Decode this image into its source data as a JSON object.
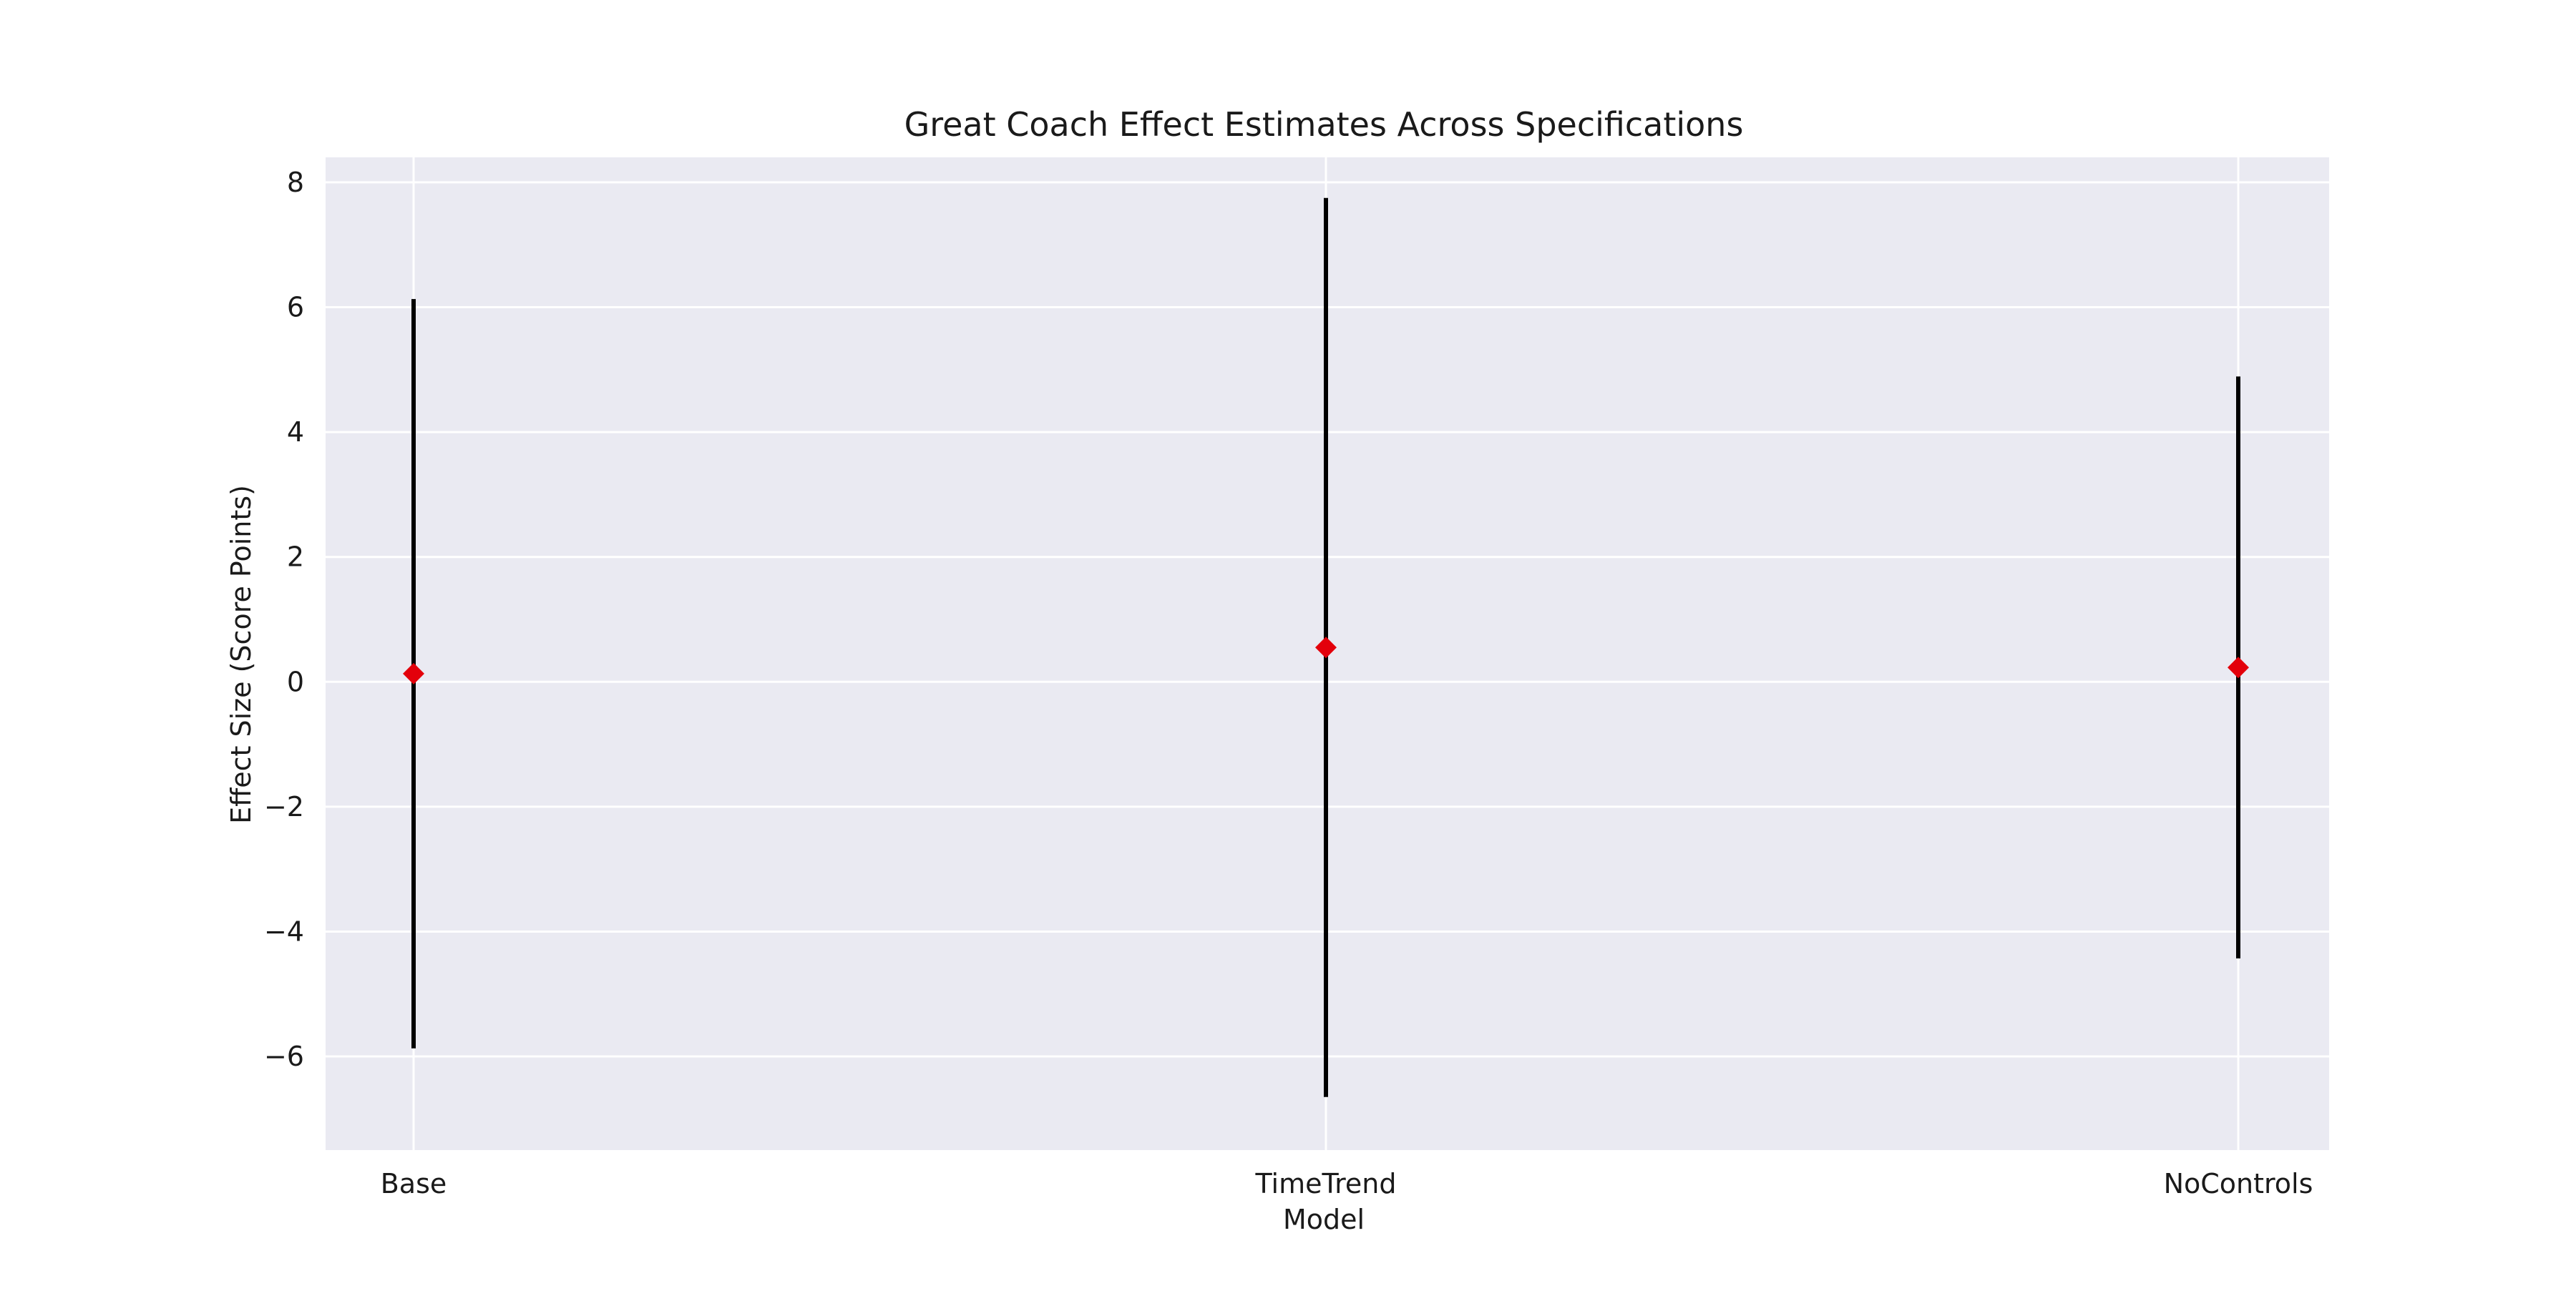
{
  "chart_data": {
    "type": "errorbar",
    "title": "Great Coach Effect Estimates Across Specifications",
    "xlabel": "Model",
    "ylabel": "Effect Size (Score Points)",
    "categories": [
      "Base",
      "TimeTrend",
      "NoControls"
    ],
    "series": [
      {
        "estimates": [
          0.13,
          0.55,
          0.23
        ],
        "ci_lower": [
          -5.87,
          -6.65,
          -4.43
        ],
        "ci_upper": [
          6.13,
          7.75,
          4.89
        ]
      }
    ],
    "ylim": [
      -7.5,
      8.4
    ],
    "yticks": [
      -6,
      -4,
      -2,
      0,
      2,
      4,
      6,
      8
    ],
    "ytick_labels": [
      "−6",
      "−4",
      "−2",
      "0",
      "2",
      "4",
      "6",
      "8"
    ],
    "grid": true,
    "colors": {
      "plot_background": "#eaeaf2",
      "grid": "#ffffff",
      "error_bar": "#000000",
      "marker": "#e3000b"
    },
    "marker_shape": "diamond"
  }
}
